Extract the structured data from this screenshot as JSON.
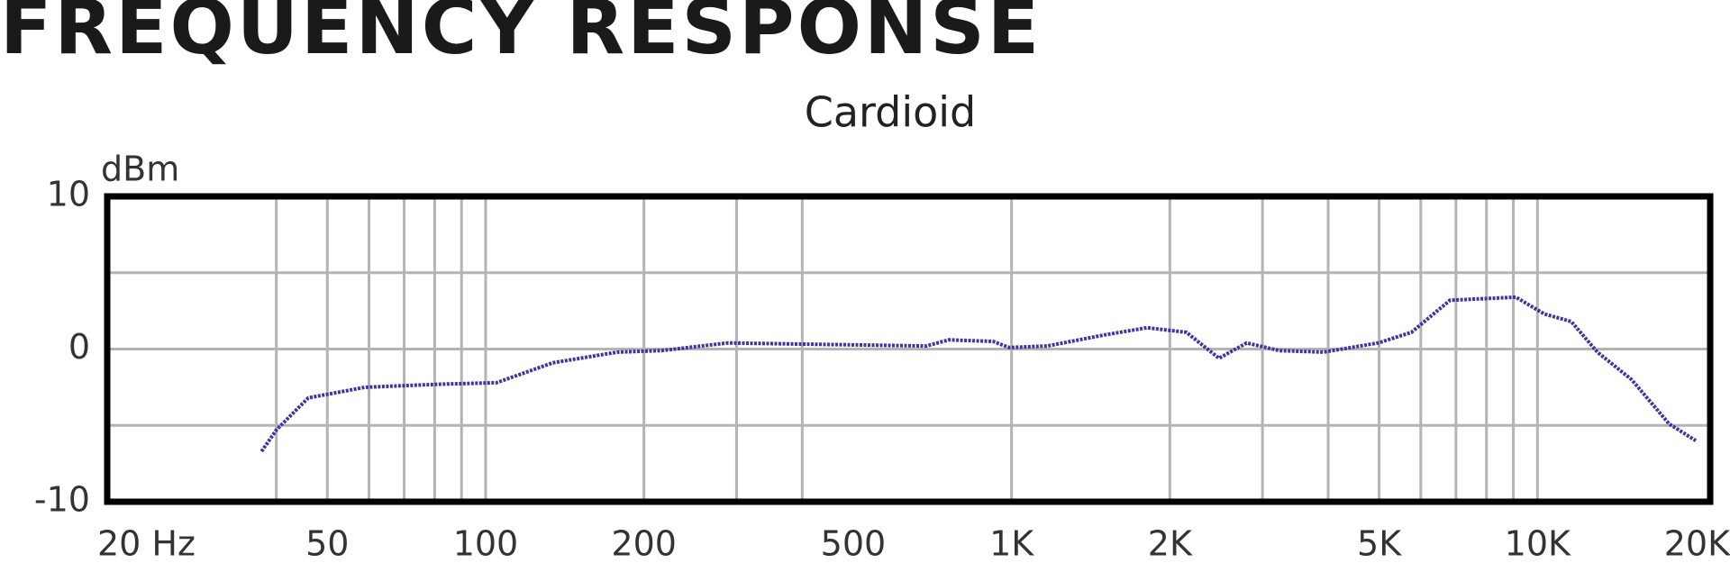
{
  "chart_data": {
    "type": "line",
    "title": "FREQUENCY RESPONSE",
    "subtitle": "Cardioid",
    "y_label": "dBm",
    "x_scale": "log",
    "color": "#3b36a3",
    "x": [
      37.5,
      40,
      46,
      59,
      82,
      105,
      134,
      178,
      216,
      289,
      446,
      688,
      760,
      922,
      990,
      1170,
      1490,
      1810,
      2150,
      2480,
      2800,
      3230,
      3920,
      4980,
      5760,
      6820,
      9100,
      10300,
      11600,
      13000,
      15100,
      17800,
      20000
    ],
    "values": [
      -6.7,
      -5.3,
      -3.2,
      -2.5,
      -2.3,
      -2.2,
      -0.9,
      -0.2,
      -0.1,
      0.4,
      0.3,
      0.2,
      0.6,
      0.5,
      0.1,
      0.2,
      0.9,
      1.4,
      1.1,
      -0.6,
      0.4,
      -0.1,
      -0.2,
      0.4,
      1.1,
      3.2,
      3.4,
      2.3,
      1.8,
      -0.2,
      -2.0,
      -4.9,
      -6.0
    ],
    "xlim": [
      20,
      20000
    ],
    "xticks": [
      {
        "value": 20,
        "label": "20 Hz"
      },
      50,
      100,
      200,
      500,
      {
        "value": 1000,
        "label": "1K"
      },
      {
        "value": 2000,
        "label": "2K"
      },
      {
        "value": 5000,
        "label": "5K"
      },
      {
        "value": 10000,
        "label": "10K"
      },
      {
        "value": 20000,
        "label": "20K"
      }
    ],
    "x_gridlines": [
      40,
      50,
      60,
      70,
      80,
      90,
      100,
      200,
      300,
      400,
      1000,
      2000,
      3000,
      4000,
      5000,
      6000,
      7000,
      8000,
      9000,
      10000
    ],
    "ylim": [
      -10,
      10
    ],
    "yticks": [
      -10,
      0,
      10
    ],
    "y_gridlines": [
      -5,
      0,
      5
    ],
    "grid": true
  }
}
